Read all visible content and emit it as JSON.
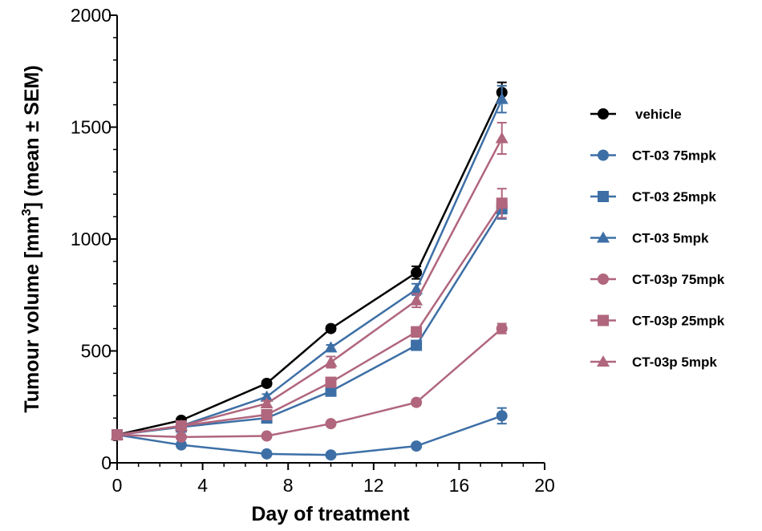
{
  "chart_data": {
    "type": "line",
    "title": "",
    "xlabel": "Day of treatment",
    "ylabel_main": "Tumour volume [mm",
    "ylabel_sup": "3",
    "ylabel_end": "] (mean ± SEM)",
    "xlim": [
      0,
      20
    ],
    "ylim": [
      0,
      2000
    ],
    "x_ticks": [
      "0",
      "4",
      "8",
      "12",
      "16",
      "20"
    ],
    "y_ticks": [
      "0",
      "500",
      "1000",
      "1500",
      "2000"
    ],
    "grid": false,
    "legend_position": "right",
    "x": [
      0,
      3,
      7,
      10,
      14,
      18
    ],
    "series": [
      {
        "name": "vehicle",
        "marker": "circle",
        "color": "#000000",
        "values": [
          125,
          190,
          355,
          600,
          850,
          1655
        ],
        "errors": [
          0,
          10,
          12,
          12,
          28,
          45
        ]
      },
      {
        "name": "CT-03 75mpk",
        "marker": "circle",
        "color": "#3d6fa6",
        "values": [
          125,
          80,
          40,
          35,
          75,
          210
        ],
        "errors": [
          0,
          8,
          6,
          6,
          8,
          35
        ]
      },
      {
        "name": "CT-03 25mpk",
        "marker": "square",
        "color": "#3d6fa6",
        "values": [
          125,
          160,
          200,
          320,
          525,
          1135
        ],
        "errors": [
          0,
          8,
          10,
          12,
          20,
          45
        ]
      },
      {
        "name": "CT-03 5mpk",
        "marker": "triangle",
        "color": "#3d6fa6",
        "values": [
          125,
          165,
          295,
          515,
          775,
          1625
        ],
        "errors": [
          0,
          8,
          12,
          12,
          25,
          60
        ]
      },
      {
        "name": "CT-03p 75mpk",
        "marker": "circle",
        "color": "#b0667d",
        "values": [
          125,
          115,
          120,
          175,
          270,
          600
        ],
        "errors": [
          0,
          8,
          8,
          10,
          12,
          22
        ]
      },
      {
        "name": "CT-03p 25mpk",
        "marker": "square",
        "color": "#b0667d",
        "values": [
          125,
          165,
          215,
          360,
          585,
          1160
        ],
        "errors": [
          0,
          8,
          10,
          14,
          22,
          65
        ]
      },
      {
        "name": "CT-03p 5mpk",
        "marker": "triangle",
        "color": "#b0667d",
        "values": [
          125,
          165,
          265,
          450,
          725,
          1450
        ],
        "errors": [
          0,
          8,
          12,
          25,
          30,
          70
        ]
      }
    ]
  }
}
